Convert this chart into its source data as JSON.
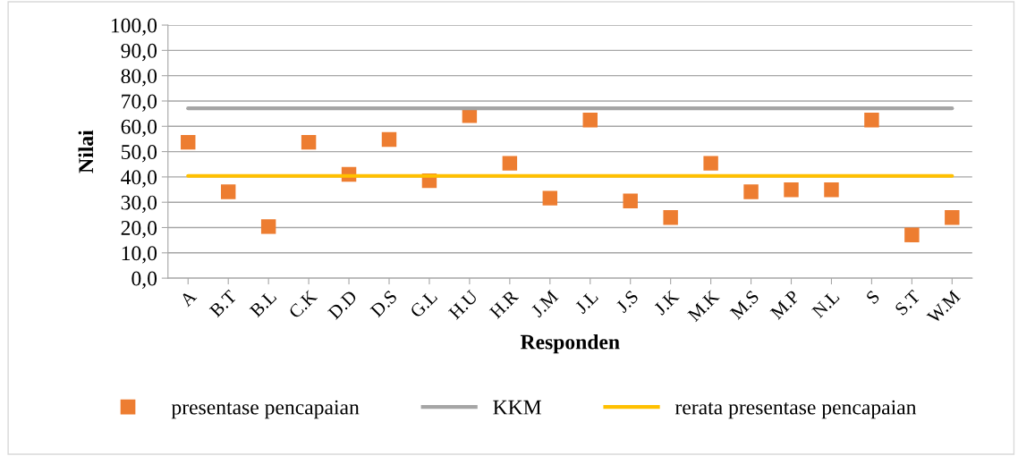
{
  "chart_data": {
    "type": "scatter",
    "xlabel": "Responden",
    "ylabel": "Nilai",
    "categories": [
      "A",
      "B.T",
      "B.L",
      "C.K",
      "D.D",
      "D.S",
      "G.L",
      "H.U",
      "H.R",
      "J.M",
      "J.L",
      "J.S",
      "J.K",
      "M.K",
      "M.S",
      "M.P",
      "N.L",
      "S",
      "S.T",
      "W.M"
    ],
    "series": [
      {
        "name": "presentase pencapaian",
        "marker": "square",
        "color": "#ed7d31",
        "values": [
          53.7,
          34.1,
          20.4,
          53.7,
          41.0,
          54.8,
          38.5,
          64.2,
          45.4,
          31.6,
          62.5,
          30.5,
          24.0,
          45.4,
          34.1,
          34.9,
          34.9,
          62.5,
          17.1,
          24.0
        ]
      },
      {
        "name": "KKM",
        "type": "line",
        "marker": "none",
        "color": "#a5a5a5",
        "values": [
          67.1,
          67.1,
          67.1,
          67.1,
          67.1,
          67.1,
          67.1,
          67.1,
          67.1,
          67.1,
          67.1,
          67.1,
          67.1,
          67.1,
          67.1,
          67.1,
          67.1,
          67.1,
          67.1,
          67.1
        ]
      },
      {
        "name": "rerata presentase pencapaian",
        "type": "line",
        "marker": "none",
        "color": "#ffc000",
        "values": [
          40.4,
          40.4,
          40.4,
          40.4,
          40.4,
          40.4,
          40.4,
          40.4,
          40.4,
          40.4,
          40.4,
          40.4,
          40.4,
          40.4,
          40.4,
          40.4,
          40.4,
          40.4,
          40.4,
          40.4
        ]
      }
    ],
    "ylim": [
      0,
      100
    ],
    "yticks": [
      {
        "value": 0,
        "label": "0,0"
      },
      {
        "value": 10,
        "label": "10,0"
      },
      {
        "value": 20,
        "label": "20,0"
      },
      {
        "value": 30,
        "label": "30,0"
      },
      {
        "value": 40,
        "label": "40,0"
      },
      {
        "value": 50,
        "label": "50,0"
      },
      {
        "value": 60,
        "label": "60,0"
      },
      {
        "value": 70,
        "label": "70,0"
      },
      {
        "value": 80,
        "label": "80,0"
      },
      {
        "value": 90,
        "label": "90,0"
      },
      {
        "value": 100,
        "label": "100,0"
      }
    ],
    "grid": "y",
    "legend": "bottom"
  }
}
